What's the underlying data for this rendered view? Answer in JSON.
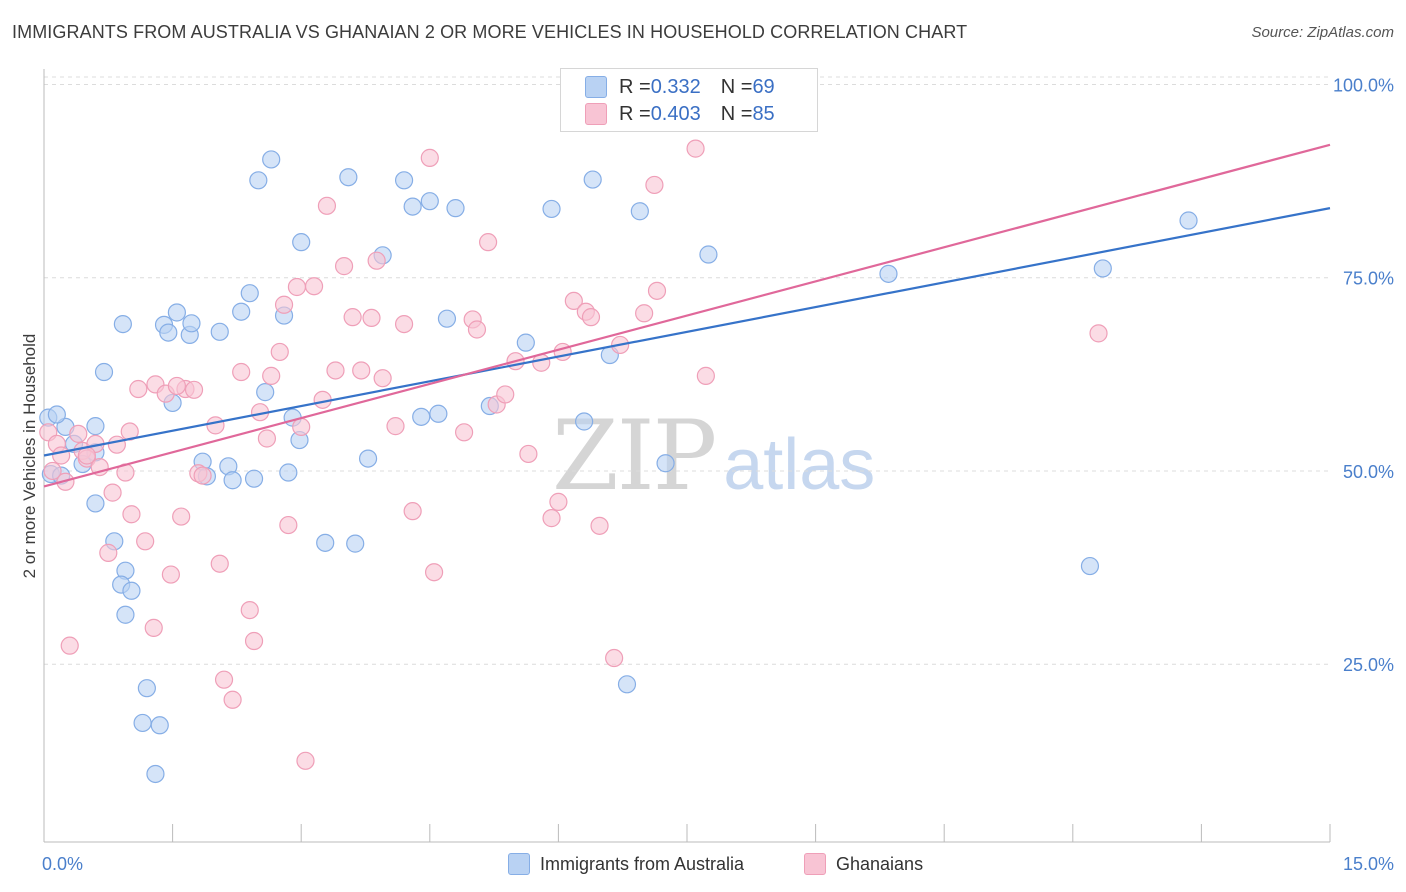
{
  "title": "IMMIGRANTS FROM AUSTRALIA VS GHANAIAN 2 OR MORE VEHICLES IN HOUSEHOLD CORRELATION CHART",
  "source": "Source: ZipAtlas.com",
  "watermark": {
    "zip": "ZIP",
    "atlas": "atlas"
  },
  "legend_top": [
    {
      "r_label": "R = ",
      "r_value": "0.332",
      "n_label": "N = ",
      "n_value": "69"
    },
    {
      "r_label": "R = ",
      "r_value": "0.403",
      "n_label": "N = ",
      "n_value": "85"
    }
  ],
  "colors": {
    "australia_fill": "#b9d2f3",
    "australia_stroke": "#86aee6",
    "australia_line": "#3673c9",
    "ghana_fill": "#f8c4d4",
    "ghana_stroke": "#ef9fb8",
    "ghana_line": "#e0689a",
    "tick_label": "#4a7fcb",
    "grid": "#dcdcdc"
  },
  "chart_data": {
    "type": "scatter",
    "title": "IMMIGRANTS FROM AUSTRALIA VS GHANAIAN 2 OR MORE VEHICLES IN HOUSEHOLD CORRELATION CHART",
    "xlabel": "",
    "ylabel": "2 or more Vehicles in Household",
    "xlim": [
      0,
      15
    ],
    "ylim": [
      2,
      102
    ],
    "x_tick_labels": [
      {
        "value": 0,
        "label": "0.0%"
      },
      {
        "value": 15,
        "label": "15.0%"
      }
    ],
    "y_tick_labels": [
      {
        "value": 25,
        "label": "25.0%"
      },
      {
        "value": 50,
        "label": "50.0%"
      },
      {
        "value": 75,
        "label": "75.0%"
      },
      {
        "value": 100,
        "label": "100.0%"
      }
    ],
    "grid": true,
    "legend_position": "bottom",
    "series": [
      {
        "name": "Immigrants from Australia",
        "color": "#86aee6",
        "trend": {
          "x": [
            0,
            15
          ],
          "y": [
            52.0,
            84.0
          ]
        },
        "points": [
          [
            0.05,
            56.9
          ],
          [
            0.08,
            49.6
          ],
          [
            0.2,
            49.4
          ],
          [
            0.25,
            55.7
          ],
          [
            0.35,
            53.5
          ],
          [
            0.45,
            50.9
          ],
          [
            0.6,
            52.4
          ],
          [
            0.6,
            55.8
          ],
          [
            0.6,
            45.8
          ],
          [
            0.7,
            62.8
          ],
          [
            0.82,
            40.9
          ],
          [
            0.92,
            69.0
          ],
          [
            0.95,
            37.1
          ],
          [
            0.95,
            31.4
          ],
          [
            0.9,
            35.3
          ],
          [
            1.02,
            34.5
          ],
          [
            1.15,
            17.4
          ],
          [
            1.2,
            21.9
          ],
          [
            1.3,
            10.8
          ],
          [
            1.35,
            17.1
          ],
          [
            1.4,
            68.9
          ],
          [
            1.45,
            67.9
          ],
          [
            1.5,
            58.8
          ],
          [
            1.55,
            70.5
          ],
          [
            1.7,
            67.6
          ],
          [
            1.72,
            69.1
          ],
          [
            1.85,
            51.2
          ],
          [
            1.9,
            49.3
          ],
          [
            2.05,
            68.0
          ],
          [
            2.15,
            50.6
          ],
          [
            2.2,
            48.8
          ],
          [
            2.3,
            70.6
          ],
          [
            2.4,
            73.0
          ],
          [
            2.45,
            49.0
          ],
          [
            2.5,
            87.6
          ],
          [
            2.58,
            60.2
          ],
          [
            2.65,
            90.3
          ],
          [
            2.8,
            70.1
          ],
          [
            2.85,
            49.8
          ],
          [
            2.9,
            56.9
          ],
          [
            2.98,
            54.0
          ],
          [
            3.0,
            79.6
          ],
          [
            3.28,
            40.7
          ],
          [
            3.55,
            88.0
          ],
          [
            3.63,
            40.6
          ],
          [
            3.78,
            51.6
          ],
          [
            3.95,
            77.9
          ],
          [
            4.2,
            87.6
          ],
          [
            4.3,
            84.2
          ],
          [
            4.4,
            57.0
          ],
          [
            4.5,
            84.9
          ],
          [
            4.6,
            57.4
          ],
          [
            4.7,
            69.7
          ],
          [
            4.8,
            84.0
          ],
          [
            5.2,
            58.4
          ],
          [
            5.62,
            66.6
          ],
          [
            5.92,
            83.9
          ],
          [
            6.3,
            56.4
          ],
          [
            6.4,
            87.7
          ],
          [
            6.6,
            65.0
          ],
          [
            6.8,
            22.4
          ],
          [
            6.95,
            83.6
          ],
          [
            7.25,
            51.0
          ],
          [
            7.75,
            78.0
          ],
          [
            9.85,
            75.5
          ],
          [
            12.2,
            37.7
          ],
          [
            12.35,
            76.2
          ],
          [
            13.35,
            82.4
          ],
          [
            0.15,
            57.3
          ]
        ]
      },
      {
        "name": "Ghanaians",
        "color": "#ef9fb8",
        "trend": {
          "x": [
            0,
            15
          ],
          "y": [
            48.0,
            92.2
          ]
        },
        "points": [
          [
            0.05,
            55.0
          ],
          [
            0.1,
            50.0
          ],
          [
            0.15,
            53.5
          ],
          [
            0.2,
            52.0
          ],
          [
            0.25,
            48.6
          ],
          [
            0.3,
            27.4
          ],
          [
            0.4,
            54.8
          ],
          [
            0.45,
            52.6
          ],
          [
            0.5,
            51.6
          ],
          [
            0.6,
            53.5
          ],
          [
            0.65,
            50.5
          ],
          [
            0.75,
            39.4
          ],
          [
            0.8,
            47.2
          ],
          [
            0.85,
            53.4
          ],
          [
            0.95,
            49.8
          ],
          [
            1.0,
            55.1
          ],
          [
            1.02,
            44.4
          ],
          [
            1.1,
            60.6
          ],
          [
            1.18,
            40.9
          ],
          [
            1.28,
            29.7
          ],
          [
            1.3,
            61.2
          ],
          [
            1.42,
            60.0
          ],
          [
            1.48,
            36.6
          ],
          [
            1.6,
            44.1
          ],
          [
            1.65,
            60.6
          ],
          [
            1.75,
            60.5
          ],
          [
            1.8,
            49.7
          ],
          [
            1.85,
            49.4
          ],
          [
            2.0,
            55.9
          ],
          [
            2.05,
            38.0
          ],
          [
            2.1,
            23.0
          ],
          [
            2.2,
            20.4
          ],
          [
            2.3,
            62.8
          ],
          [
            2.4,
            32.0
          ],
          [
            2.45,
            28.0
          ],
          [
            2.52,
            57.6
          ],
          [
            2.6,
            54.2
          ],
          [
            2.65,
            62.3
          ],
          [
            2.75,
            65.4
          ],
          [
            2.8,
            71.5
          ],
          [
            2.85,
            43.0
          ],
          [
            2.95,
            73.8
          ],
          [
            3.0,
            55.7
          ],
          [
            3.05,
            12.5
          ],
          [
            3.15,
            73.9
          ],
          [
            3.25,
            59.2
          ],
          [
            3.3,
            84.3
          ],
          [
            3.4,
            63.0
          ],
          [
            3.5,
            76.5
          ],
          [
            3.6,
            69.9
          ],
          [
            3.7,
            63.0
          ],
          [
            3.82,
            69.8
          ],
          [
            3.88,
            77.2
          ],
          [
            3.95,
            62.0
          ],
          [
            4.1,
            55.8
          ],
          [
            4.2,
            69.0
          ],
          [
            4.3,
            44.8
          ],
          [
            4.55,
            36.9
          ],
          [
            4.5,
            90.5
          ],
          [
            4.9,
            55.0
          ],
          [
            5.0,
            69.6
          ],
          [
            5.05,
            68.3
          ],
          [
            5.18,
            79.6
          ],
          [
            5.28,
            58.6
          ],
          [
            5.38,
            59.9
          ],
          [
            5.5,
            64.2
          ],
          [
            5.65,
            52.2
          ],
          [
            5.8,
            64.0
          ],
          [
            5.92,
            43.9
          ],
          [
            6.0,
            46.0
          ],
          [
            6.05,
            65.4
          ],
          [
            6.18,
            72.0
          ],
          [
            6.32,
            70.6
          ],
          [
            6.38,
            69.9
          ],
          [
            6.48,
            42.9
          ],
          [
            6.65,
            25.8
          ],
          [
            6.72,
            66.3
          ],
          [
            7.0,
            70.4
          ],
          [
            7.12,
            87.0
          ],
          [
            7.15,
            73.3
          ],
          [
            7.6,
            91.7
          ],
          [
            7.72,
            62.3
          ],
          [
            12.3,
            67.8
          ],
          [
            0.5,
            52.0
          ],
          [
            1.55,
            61.0
          ]
        ]
      }
    ]
  },
  "legend_bottom": [
    "Immigrants from Australia",
    "Ghanaians"
  ]
}
